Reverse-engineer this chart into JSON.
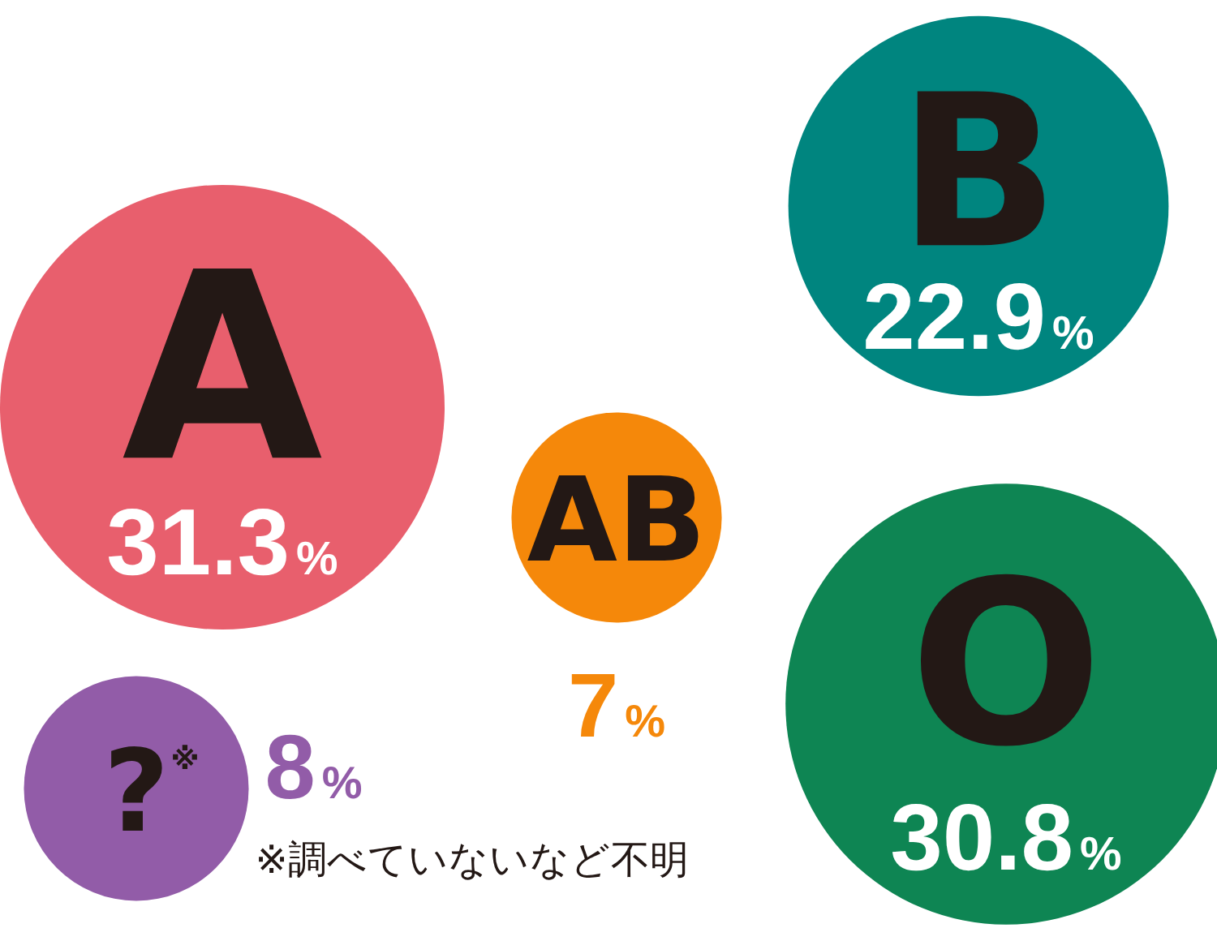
{
  "chart_data": {
    "type": "other",
    "categories": [
      "A",
      "B",
      "AB",
      "O",
      "?$^{※}$"
    ],
    "values": [
      31.3,
      22.9,
      7,
      30.8,
      8
    ],
    "value_labels": [
      "31.3%",
      "22.9%",
      "7%",
      "30.8%",
      "8%"
    ],
    "colors": [
      "#e85f6d",
      "#00857f",
      "#f5880a",
      "#0e8553",
      "#925ca8"
    ],
    "annotations": [
      "※調べていないなど不明"
    ]
  }
}
